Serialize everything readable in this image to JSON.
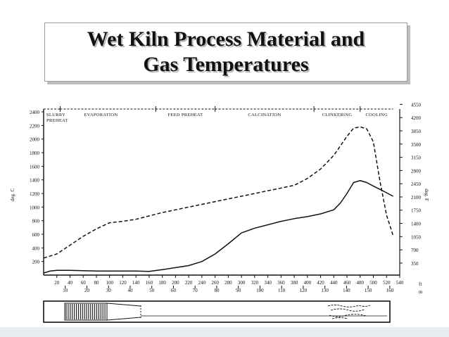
{
  "slide": {
    "title_line1": "Wet Kiln Process Material and",
    "title_line2": "Gas Temperatures"
  },
  "chart_data": {
    "type": "line",
    "title": "",
    "xlabel": "ft",
    "xlabel_m": "m",
    "ylabel_left": "deg. C",
    "ylabel_right": "deg. F",
    "xlim": [
      0,
      540
    ],
    "ylim_left": [
      0,
      2400
    ],
    "ylim_right": [
      32,
      4550
    ],
    "ticks_ft": [
      "20",
      "40",
      "60",
      "80",
      "100",
      "120",
      "140",
      "160",
      "180",
      "200",
      "220",
      "240",
      "260",
      "280",
      "300",
      "320",
      "340",
      "360",
      "380",
      "400",
      "420",
      "440",
      "460",
      "480",
      "500",
      "520",
      "540"
    ],
    "ticks_m": [
      "10",
      "20",
      "30",
      "40",
      "50",
      "60",
      "70",
      "80",
      "90",
      "100",
      "110",
      "120",
      "130",
      "140",
      "150",
      "160"
    ],
    "ticks_left": [
      "200",
      "400",
      "600",
      "800",
      "1000",
      "1200",
      "1400",
      "1600",
      "1800",
      "2000",
      "2200",
      "2400"
    ],
    "ticks_right": [
      "350",
      "700",
      "1050",
      "1400",
      "1750",
      "2100",
      "2450",
      "2800",
      "3150",
      "3500",
      "3850",
      "4200",
      "4550"
    ],
    "zones": [
      {
        "label_lines": [
          "SLURRY",
          "PREHEAT"
        ],
        "start": 0,
        "end": 25
      },
      {
        "label_lines": [
          "EVAPORATION"
        ],
        "start": 25,
        "end": 170
      },
      {
        "label_lines": [
          "FEED PREHEAT"
        ],
        "start": 170,
        "end": 260
      },
      {
        "label_lines": [
          "CALCINATION"
        ],
        "start": 260,
        "end": 410
      },
      {
        "label_lines": [
          "CLINKERING"
        ],
        "start": 410,
        "end": 480
      },
      {
        "label_lines": [
          "COOLING"
        ],
        "start": 480,
        "end": 530
      }
    ],
    "series": [
      {
        "style": "dashed",
        "x": [
          0,
          20,
          40,
          60,
          80,
          100,
          120,
          140,
          160,
          180,
          200,
          220,
          240,
          260,
          280,
          300,
          320,
          340,
          360,
          380,
          400,
          420,
          440,
          460,
          470,
          480,
          490,
          500,
          510,
          520,
          530
        ],
        "values": [
          250,
          310,
          440,
          570,
          680,
          770,
          790,
          820,
          870,
          920,
          960,
          1000,
          1040,
          1080,
          1120,
          1160,
          1200,
          1240,
          1280,
          1320,
          1420,
          1560,
          1760,
          2040,
          2160,
          2180,
          2150,
          1960,
          1380,
          880,
          580
        ]
      },
      {
        "style": "solid",
        "x": [
          0,
          10,
          20,
          40,
          60,
          80,
          100,
          120,
          140,
          160,
          180,
          200,
          220,
          240,
          260,
          280,
          300,
          320,
          340,
          360,
          380,
          400,
          420,
          440,
          450,
          460,
          470,
          480,
          490,
          500,
          510,
          520,
          530
        ],
        "values": [
          30,
          60,
          70,
          70,
          65,
          60,
          60,
          60,
          60,
          55,
          80,
          110,
          140,
          200,
          310,
          460,
          620,
          690,
          740,
          790,
          830,
          860,
          900,
          960,
          1060,
          1200,
          1360,
          1390,
          1360,
          1310,
          1260,
          1210,
          1160
        ]
      }
    ]
  },
  "kiln_diagram": {
    "shape": "rotary kiln cross-section"
  }
}
